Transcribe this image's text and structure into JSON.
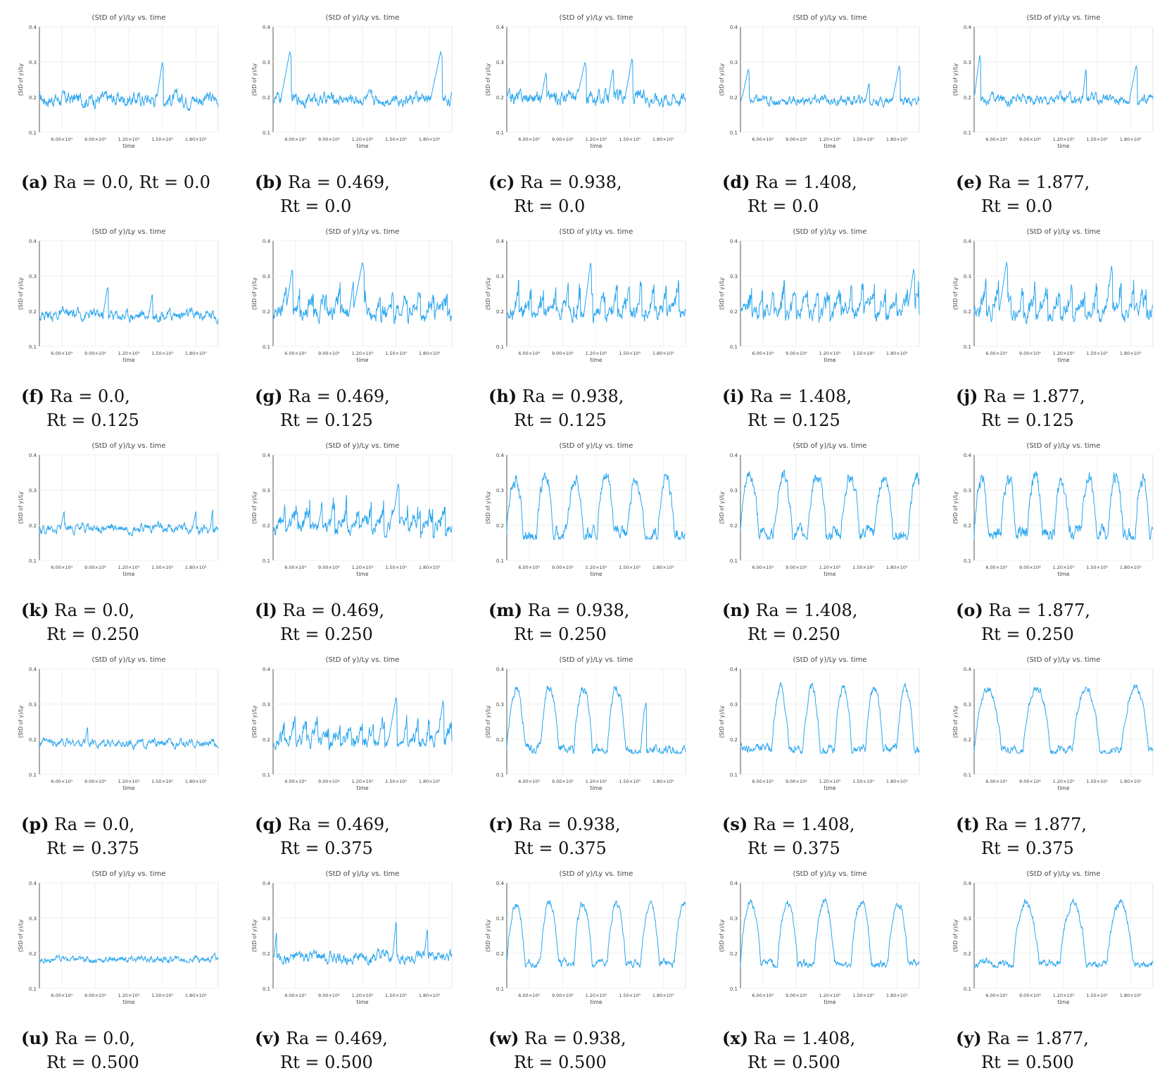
{
  "common": {
    "title": "(StD of y)/Ly vs. time",
    "xlabel": "time",
    "ylabel": "(StD of y)/Ly",
    "yticks": [
      "0.1",
      "0.2",
      "0.3",
      "0.4"
    ],
    "xticks": [
      "6.00×10⁴",
      "9.00×10⁴",
      "1.20×10⁵",
      "1.50×10⁵",
      "1.80×10⁵"
    ],
    "line_color": "#2aa6ef"
  },
  "chart_data": [
    {
      "type": "line",
      "tag": "(a)",
      "caption_line1": "Ra = 0.0, Rt = 0.0",
      "caption_line2": "",
      "base": 0.195,
      "noise": 0.018,
      "kind": "noise",
      "peaks": [
        [
          150000,
          0.3,
          5000
        ]
      ],
      "ylim": [
        0.1,
        0.4
      ],
      "xlim": [
        40000,
        200000
      ]
    },
    {
      "type": "line",
      "tag": "(b)",
      "caption_line1": "Ra = 0.469,",
      "caption_line2": "Rt = 0.0",
      "base": 0.195,
      "noise": 0.015,
      "kind": "noise",
      "peaks": [
        [
          55000,
          0.33,
          8000
        ],
        [
          190000,
          0.33,
          9000
        ]
      ],
      "ylim": [
        0.1,
        0.4
      ],
      "xlim": [
        40000,
        200000
      ]
    },
    {
      "type": "line",
      "tag": "(c)",
      "caption_line1": "Ra = 0.938,",
      "caption_line2": "Rt = 0.0",
      "base": 0.2,
      "noise": 0.018,
      "kind": "noise",
      "peaks": [
        [
          75000,
          0.27,
          4000
        ],
        [
          110000,
          0.3,
          7000
        ],
        [
          135000,
          0.28,
          4000
        ],
        [
          152000,
          0.31,
          6000
        ]
      ],
      "ylim": [
        0.1,
        0.4
      ],
      "xlim": [
        40000,
        200000
      ]
    },
    {
      "type": "line",
      "tag": "(d)",
      "caption_line1": "Ra = 1.408,",
      "caption_line2": "Rt = 0.0",
      "base": 0.19,
      "noise": 0.012,
      "kind": "noise",
      "peaks": [
        [
          47000,
          0.28,
          6000
        ],
        [
          155000,
          0.24,
          3000
        ],
        [
          182000,
          0.29,
          6000
        ]
      ],
      "ylim": [
        0.1,
        0.4
      ],
      "xlim": [
        40000,
        200000
      ]
    },
    {
      "type": "line",
      "tag": "(e)",
      "caption_line1": "Ra = 1.877,",
      "caption_line2": "Rt = 0.0",
      "base": 0.195,
      "noise": 0.013,
      "kind": "noise",
      "peaks": [
        [
          45000,
          0.32,
          5000
        ],
        [
          140000,
          0.28,
          3000
        ],
        [
          185000,
          0.29,
          6000
        ]
      ],
      "ylim": [
        0.1,
        0.4
      ],
      "xlim": [
        40000,
        200000
      ]
    },
    {
      "type": "line",
      "tag": "(f)",
      "caption_line1": "Ra = 0.0,",
      "caption_line2": "Rt = 0.125",
      "base": 0.19,
      "noise": 0.014,
      "kind": "noise",
      "peaks": [
        [
          101000,
          0.27,
          4000
        ],
        [
          141000,
          0.25,
          3000
        ]
      ],
      "ylim": [
        0.1,
        0.4
      ],
      "xlim": [
        40000,
        200000
      ]
    },
    {
      "type": "line",
      "tag": "(g)",
      "caption_line1": "Ra = 0.469,",
      "caption_line2": "Rt = 0.125",
      "base": 0.19,
      "noise": 0.02,
      "kind": "saw",
      "period": 12000,
      "amp": 0.08,
      "peaks": [
        [
          57000,
          0.32,
          6000
        ],
        [
          120000,
          0.34,
          9000
        ]
      ],
      "ylim": [
        0.1,
        0.4
      ],
      "xlim": [
        40000,
        200000
      ]
    },
    {
      "type": "line",
      "tag": "(h)",
      "caption_line1": "Ra = 0.938,",
      "caption_line2": "Rt = 0.125",
      "base": 0.19,
      "noise": 0.02,
      "kind": "saw",
      "period": 11000,
      "amp": 0.1,
      "peaks": [
        [
          115000,
          0.34,
          6000
        ]
      ],
      "ylim": [
        0.1,
        0.4
      ],
      "xlim": [
        40000,
        200000
      ]
    },
    {
      "type": "line",
      "tag": "(i)",
      "caption_line1": "Ra = 1.408,",
      "caption_line2": "Rt = 0.125",
      "base": 0.19,
      "noise": 0.02,
      "kind": "saw",
      "period": 10000,
      "amp": 0.1,
      "peaks": [
        [
          195000,
          0.32,
          6000
        ]
      ],
      "ylim": [
        0.1,
        0.4
      ],
      "xlim": [
        40000,
        200000
      ]
    },
    {
      "type": "line",
      "tag": "(j)",
      "caption_line1": "Ra = 1.877,",
      "caption_line2": "Rt = 0.125",
      "base": 0.19,
      "noise": 0.02,
      "kind": "saw",
      "period": 11000,
      "amp": 0.1,
      "peaks": [
        [
          69000,
          0.34,
          7000
        ],
        [
          163000,
          0.33,
          5000
        ]
      ],
      "ylim": [
        0.1,
        0.4
      ],
      "xlim": [
        40000,
        200000
      ]
    },
    {
      "type": "line",
      "tag": "(k)",
      "caption_line1": "Ra = 0.0,",
      "caption_line2": "Rt = 0.250",
      "base": 0.19,
      "noise": 0.012,
      "kind": "noise",
      "peaks": [
        [
          62000,
          0.24,
          3000
        ],
        [
          180000,
          0.24,
          3000
        ],
        [
          195000,
          0.245,
          2000
        ]
      ],
      "ylim": [
        0.1,
        0.4
      ],
      "xlim": [
        40000,
        200000
      ]
    },
    {
      "type": "line",
      "tag": "(l)",
      "caption_line1": "Ra = 0.469,",
      "caption_line2": "Rt = 0.250",
      "base": 0.19,
      "noise": 0.018,
      "kind": "saw",
      "period": 11000,
      "amp": 0.09,
      "peaks": [
        [
          152000,
          0.32,
          6000
        ]
      ],
      "ylim": [
        0.1,
        0.4
      ],
      "xlim": [
        40000,
        200000
      ]
    },
    {
      "type": "line",
      "tag": "(m)",
      "caption_line1": "Ra = 0.938,",
      "caption_line2": "Rt = 0.250",
      "base": 0.175,
      "noise": 0.018,
      "kind": "wave",
      "period": 27000,
      "amp": 0.16,
      "ylim": [
        0.1,
        0.4
      ],
      "xlim": [
        40000,
        200000
      ]
    },
    {
      "type": "line",
      "tag": "(n)",
      "caption_line1": "Ra = 1.408,",
      "caption_line2": "Rt = 0.250",
      "base": 0.175,
      "noise": 0.018,
      "kind": "wave",
      "period": 30000,
      "amp": 0.165,
      "ylim": [
        0.1,
        0.4
      ],
      "xlim": [
        40000,
        200000
      ]
    },
    {
      "type": "line",
      "tag": "(o)",
      "caption_line1": "Ra = 1.877,",
      "caption_line2": "Rt = 0.250",
      "base": 0.175,
      "noise": 0.02,
      "kind": "wave",
      "period": 24000,
      "amp": 0.16,
      "ylim": [
        0.1,
        0.4
      ],
      "xlim": [
        40000,
        200000
      ]
    },
    {
      "type": "line",
      "tag": "(p)",
      "caption_line1": "Ra = 0.0,",
      "caption_line2": "Rt = 0.375",
      "base": 0.188,
      "noise": 0.01,
      "kind": "noise",
      "peaks": [
        [
          83000,
          0.235,
          2500
        ]
      ],
      "ylim": [
        0.1,
        0.4
      ],
      "xlim": [
        40000,
        200000
      ]
    },
    {
      "type": "line",
      "tag": "(q)",
      "caption_line1": "Ra = 0.469,",
      "caption_line2": "Rt = 0.375",
      "base": 0.19,
      "noise": 0.018,
      "kind": "saw",
      "period": 10000,
      "amp": 0.08,
      "peaks": [
        [
          150000,
          0.32,
          7000
        ],
        [
          192000,
          0.31,
          5000
        ]
      ],
      "ylim": [
        0.1,
        0.4
      ],
      "xlim": [
        40000,
        200000
      ]
    },
    {
      "type": "line",
      "tag": "(r)",
      "caption_line1": "Ra = 0.938,",
      "caption_line2": "Rt = 0.375",
      "base": 0.17,
      "noise": 0.012,
      "kind": "wave",
      "period": 30000,
      "amp": 0.175,
      "cutoff": 165000,
      "ylim": [
        0.1,
        0.4
      ],
      "xlim": [
        40000,
        200000
      ]
    },
    {
      "type": "line",
      "tag": "(s)",
      "caption_line1": "Ra = 1.408,",
      "caption_line2": "Rt = 0.375",
      "base": 0.17,
      "noise": 0.012,
      "kind": "wave",
      "period": 28000,
      "amp": 0.175,
      "start": 68000,
      "ylim": [
        0.1,
        0.4
      ],
      "xlim": [
        40000,
        200000
      ]
    },
    {
      "type": "line",
      "tag": "(t)",
      "caption_line1": "Ra = 1.877,",
      "caption_line2": "Rt = 0.375",
      "base": 0.168,
      "noise": 0.01,
      "kind": "wave",
      "period": 44000,
      "amp": 0.18,
      "ylim": [
        0.1,
        0.4
      ],
      "xlim": [
        40000,
        200000
      ]
    },
    {
      "type": "line",
      "tag": "(u)",
      "caption_line1": "Ra = 0.0,",
      "caption_line2": "Rt = 0.500",
      "base": 0.183,
      "noise": 0.008,
      "kind": "noise",
      "peaks": [],
      "ylim": [
        0.1,
        0.4
      ],
      "xlim": [
        40000,
        200000
      ]
    },
    {
      "type": "line",
      "tag": "(v)",
      "caption_line1": "Ra = 0.469,",
      "caption_line2": "Rt = 0.500",
      "base": 0.188,
      "noise": 0.015,
      "kind": "noise",
      "peaks": [
        [
          43000,
          0.26,
          2000
        ],
        [
          150000,
          0.29,
          3000
        ],
        [
          178000,
          0.27,
          3000
        ]
      ],
      "ylim": [
        0.1,
        0.4
      ],
      "xlim": [
        40000,
        200000
      ]
    },
    {
      "type": "line",
      "tag": "(w)",
      "caption_line1": "Ra = 0.938,",
      "caption_line2": "Rt = 0.500",
      "base": 0.17,
      "noise": 0.01,
      "kind": "wave",
      "period": 30000,
      "amp": 0.17,
      "ylim": [
        0.1,
        0.4
      ],
      "xlim": [
        40000,
        200000
      ]
    },
    {
      "type": "line",
      "tag": "(x)",
      "caption_line1": "Ra = 1.408,",
      "caption_line2": "Rt = 0.500",
      "base": 0.17,
      "noise": 0.01,
      "kind": "wave",
      "period": 33000,
      "amp": 0.175,
      "ylim": [
        0.1,
        0.4
      ],
      "xlim": [
        40000,
        200000
      ]
    },
    {
      "type": "line",
      "tag": "(y)",
      "caption_line1": "Ra = 1.877,",
      "caption_line2": "Rt = 0.500",
      "base": 0.17,
      "noise": 0.01,
      "kind": "wave",
      "period": 42000,
      "amp": 0.175,
      "start": 75000,
      "ylim": [
        0.1,
        0.4
      ],
      "xlim": [
        40000,
        200000
      ]
    }
  ]
}
